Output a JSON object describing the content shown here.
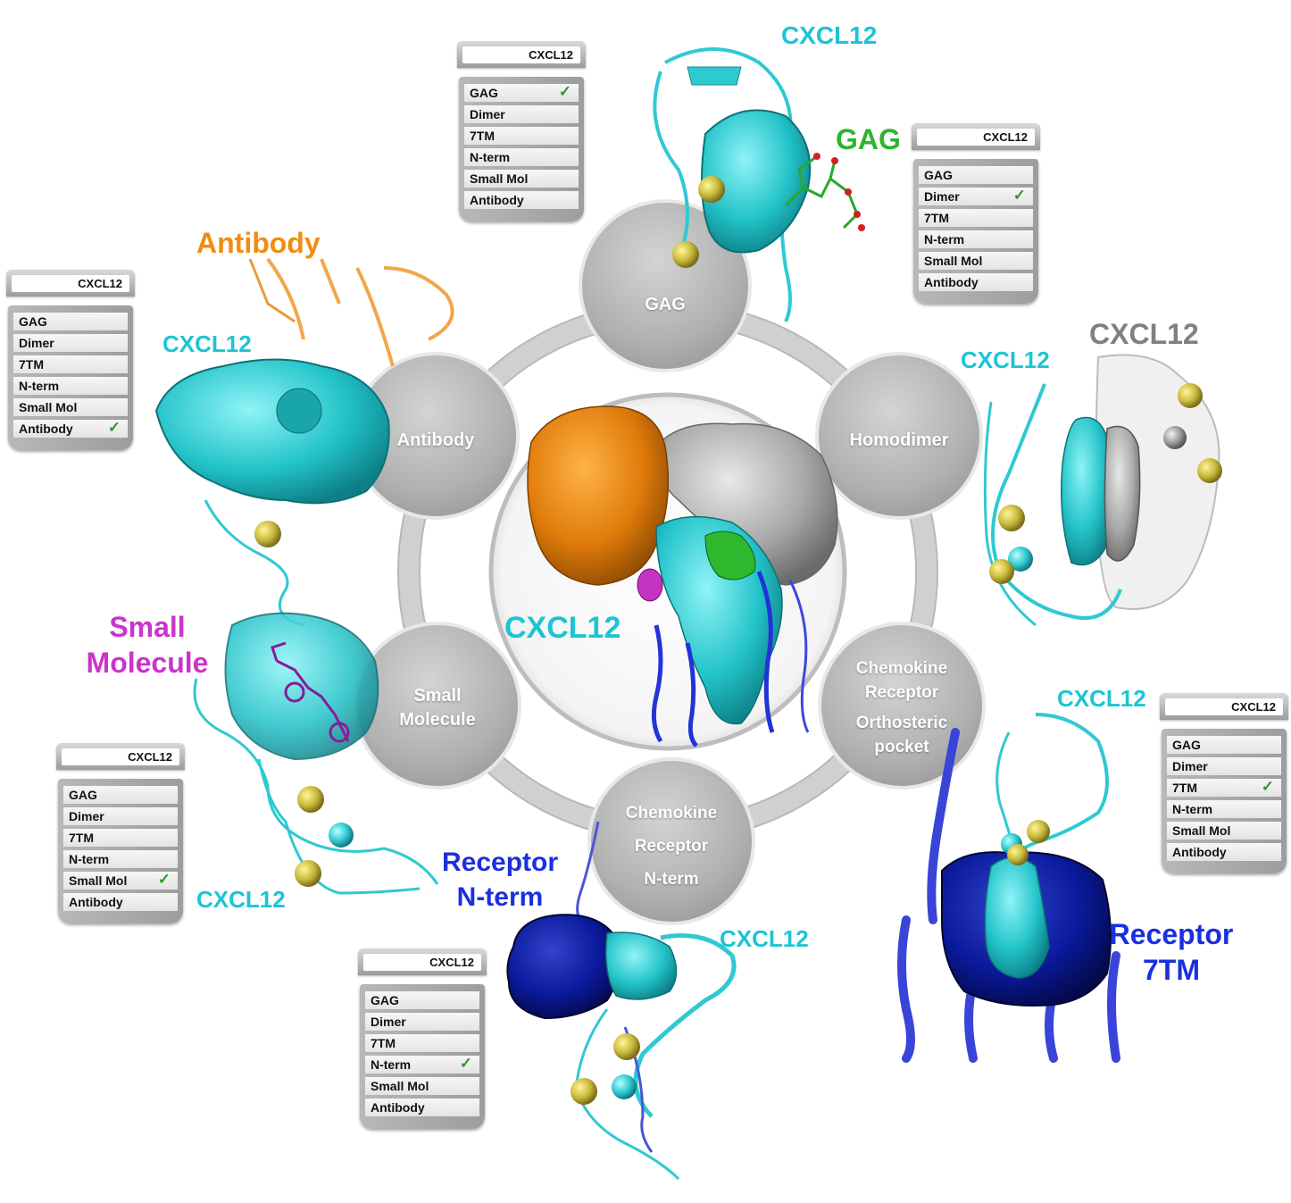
{
  "center": {
    "label": "CXCL12"
  },
  "bubbles": {
    "gag": "GAG",
    "homodimer": "Homodimer",
    "orthosteric": [
      "Chemokine",
      "Receptor",
      "Orthosteric",
      "pocket"
    ],
    "nterm": [
      "Chemokine",
      "Receptor",
      "N-term"
    ],
    "small_molecule": [
      "Small",
      "Molecule"
    ],
    "antibody": "Antibody"
  },
  "labels": {
    "cxcl12_top": "CXCL12",
    "gag": "GAG",
    "antibody": "Antibody",
    "cxcl12_antibody": "CXCL12",
    "cxcl12_dimer_cyan": "CXCL12",
    "cxcl12_dimer_grey": "CXCL12",
    "small_molecule": [
      "Small",
      "Molecule"
    ],
    "cxcl12_small": "CXCL12",
    "receptor_nterm": [
      "Receptor",
      "N-term"
    ],
    "cxcl12_nterm": "CXCL12",
    "cxcl12_7tm": "CXCL12",
    "receptor_7tm": [
      "Receptor",
      "7TM"
    ]
  },
  "panels": {
    "gag": {
      "title": "CXCL12",
      "items": [
        "GAG",
        "Dimer",
        "7TM",
        "N-term",
        "Small Mol",
        "Antibody"
      ],
      "checked": 0
    },
    "dimer": {
      "title": "CXCL12",
      "items": [
        "GAG",
        "Dimer",
        "7TM",
        "N-term",
        "Small Mol",
        "Antibody"
      ],
      "checked": 1
    },
    "antibody": {
      "title": "CXCL12",
      "items": [
        "GAG",
        "Dimer",
        "7TM",
        "N-term",
        "Small Mol",
        "Antibody"
      ],
      "checked": 5
    },
    "small_mol": {
      "title": "CXCL12",
      "items": [
        "GAG",
        "Dimer",
        "7TM",
        "N-term",
        "Small Mol",
        "Antibody"
      ],
      "checked": 4
    },
    "nterm": {
      "title": "CXCL12",
      "items": [
        "GAG",
        "Dimer",
        "7TM",
        "N-term",
        "Small Mol",
        "Antibody"
      ],
      "checked": 3
    },
    "tm7": {
      "title": "CXCL12",
      "items": [
        "GAG",
        "Dimer",
        "7TM",
        "N-term",
        "Small Mol",
        "Antibody"
      ],
      "checked": 2
    }
  },
  "check_glyph": "✓",
  "colors": {
    "cyan": "#1cc4d4",
    "orange": "#f28c0f",
    "green": "#2db52d",
    "grey": "#808080",
    "magenta": "#cc33cc",
    "blue": "#1a2fe0",
    "navy": "#0a1a8c",
    "ring": "#c8c8c8"
  }
}
